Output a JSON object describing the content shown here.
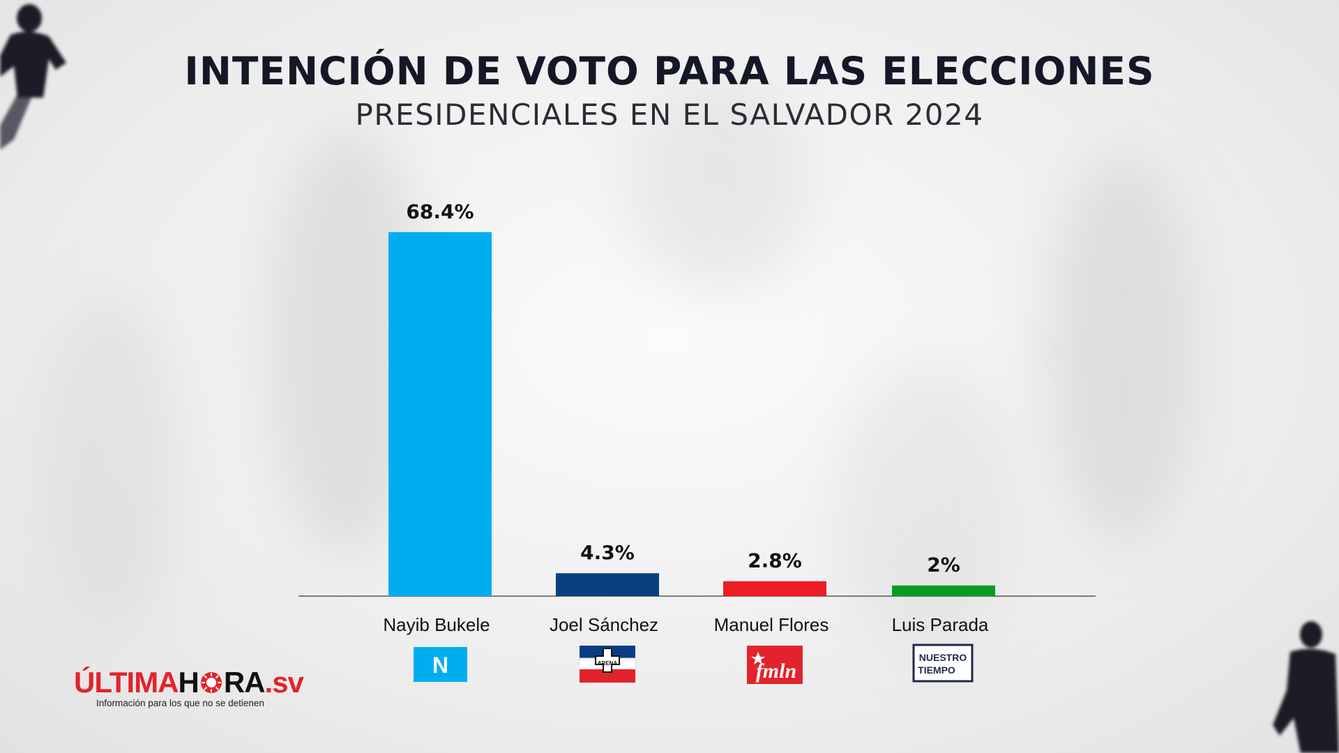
{
  "header": {
    "title": "INTENCIÓN DE VOTO PARA LAS ELECCIONES",
    "subtitle": "PRESIDENCIALES EN EL SALVADOR 2024"
  },
  "chart_data": {
    "type": "bar",
    "categories": [
      "Nayib Bukele",
      "Joel Sánchez",
      "Manuel Flores",
      "Luis Parada"
    ],
    "values": [
      68.4,
      4.3,
      2.8,
      2
    ],
    "value_labels": [
      "68.4%",
      "4.3%",
      "2.8%",
      "2%"
    ],
    "colors": [
      "#00aeef",
      "#08417e",
      "#ee1c25",
      "#0a9b24"
    ],
    "party_logos": [
      {
        "text": "N",
        "icon": "nuevas-ideas-logo"
      },
      {
        "text": "ARENA",
        "icon": "arena-logo"
      },
      {
        "text": "fmln",
        "icon": "fmln-logo"
      },
      {
        "text": "NUESTRO TIEMPO",
        "icon": "nuestro-tiempo-logo"
      }
    ],
    "ylim": [
      0,
      70
    ],
    "grid": false,
    "legend": "none"
  },
  "brand": {
    "name_part1": "ÚLTIMA",
    "name_part2": "H",
    "name_part3": "RA",
    "name_suffix": ".sv",
    "tagline": "Información para los que no se detienen",
    "accent": "#e3232b"
  }
}
